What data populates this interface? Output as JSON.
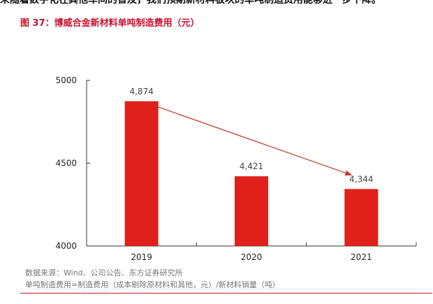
{
  "intro_text": "未随着数字化在其他车间的普及，我们预期新材料板块的单吨制造费用能够进一步下降。",
  "figure_title": "图 37：博威合金新材料单吨制造费用（元）",
  "source": "数据来源：Wind、公司公告、东方证券研究所",
  "note": "单吨制造费用=制造费用（成本剔除原材料和其他，元）/新材料销量（吨）",
  "colors": {
    "bar": "#e0201a",
    "arrow": "#c0392b",
    "title": "#c8102e"
  },
  "chart_data": {
    "type": "bar",
    "title": "",
    "xlabel": "",
    "ylabel": "",
    "categories": [
      "2019",
      "2020",
      "2021"
    ],
    "values": [
      4874,
      4421,
      4344
    ],
    "data_labels": [
      "4,874",
      "4,421",
      "4,344"
    ],
    "y_ticks": [
      "5000",
      "4500",
      "4000"
    ],
    "ylim": [
      4000,
      5000
    ],
    "grid": false,
    "legend": "none",
    "annotation": "trend arrow from 2019 bar top to 2021 bar top"
  }
}
